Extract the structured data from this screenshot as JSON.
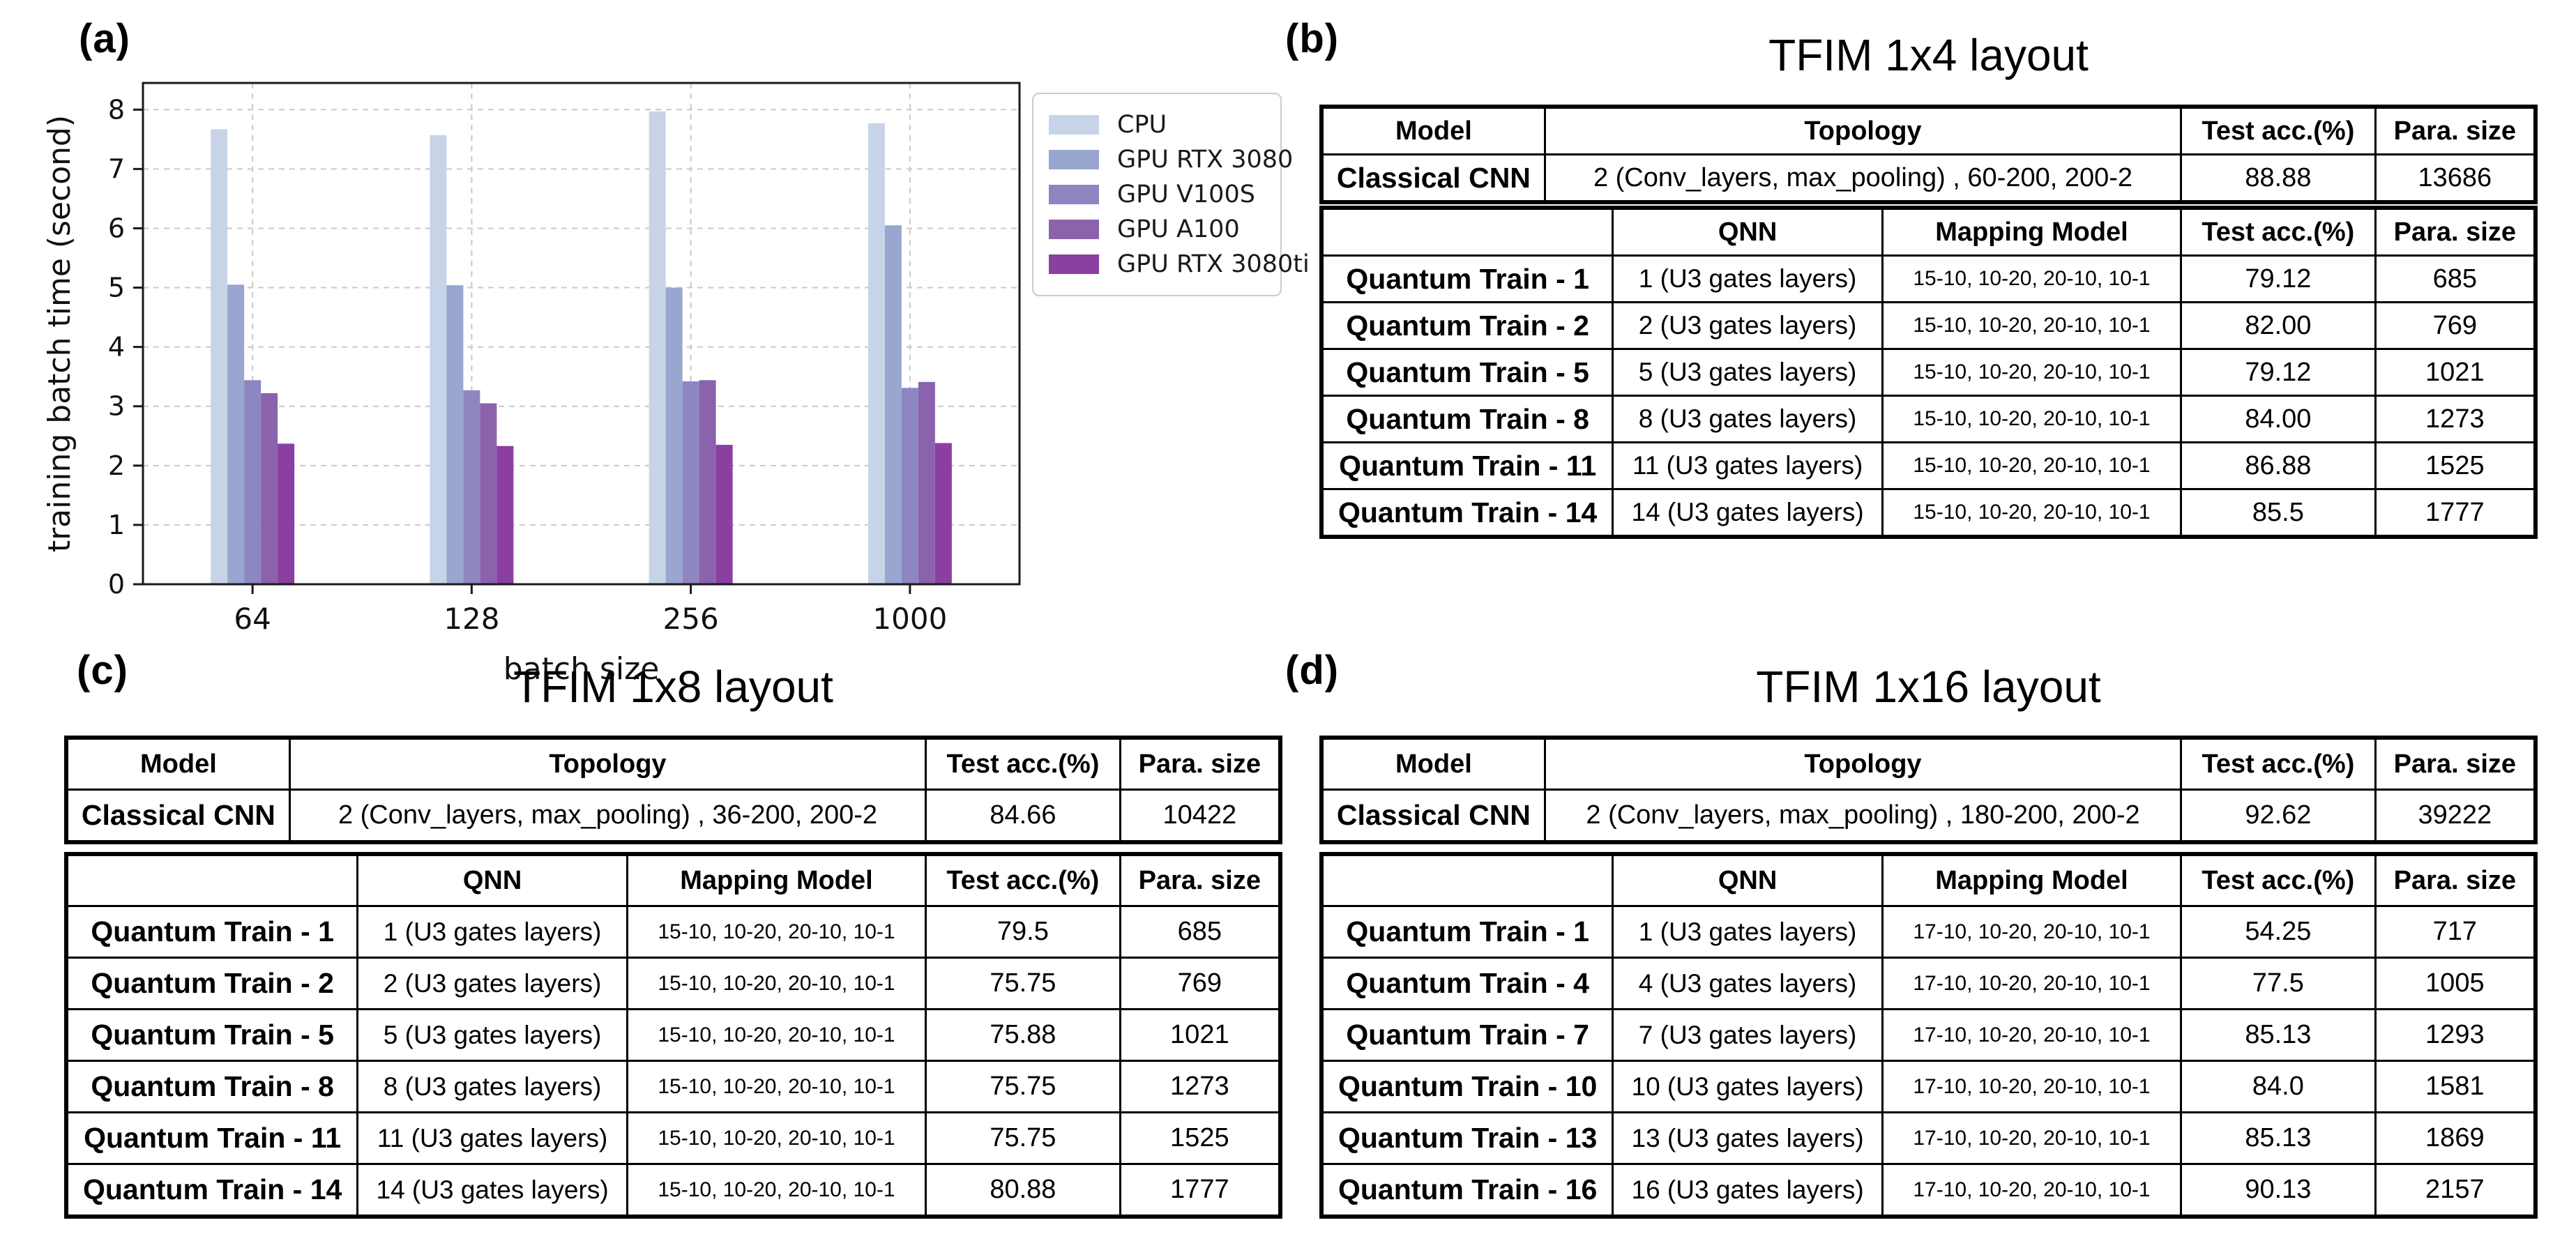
{
  "panel_labels": {
    "a": "(a)",
    "b": "(b)",
    "c": "(c)",
    "d": "(d)"
  },
  "chart_data": {
    "type": "bar",
    "title": "",
    "xlabel": "batch size",
    "ylabel": "training batch time (second)",
    "categories": [
      "64",
      "128",
      "256",
      "1000"
    ],
    "series": [
      {
        "name": "CPU",
        "color": "#c7d4e7",
        "values": [
          7.67,
          7.57,
          7.97,
          7.77
        ]
      },
      {
        "name": "GPU RTX 3080",
        "color": "#99a6cf",
        "values": [
          5.05,
          5.04,
          5.0,
          6.05
        ]
      },
      {
        "name": "GPU V100S",
        "color": "#8d86c0",
        "values": [
          3.44,
          3.27,
          3.42,
          3.31
        ]
      },
      {
        "name": "GPU A100",
        "color": "#8a63ac",
        "values": [
          3.22,
          3.05,
          3.44,
          3.41
        ]
      },
      {
        "name": "GPU RTX 3080ti",
        "color": "#8a3fa1",
        "values": [
          2.37,
          2.33,
          2.35,
          2.38
        ]
      }
    ],
    "ylim": [
      0,
      8.45
    ],
    "yticks": [
      0,
      1,
      2,
      3,
      4,
      5,
      6,
      7,
      8
    ],
    "grid": true,
    "legend_position": "right-outside",
    "axis_color": "#1a1a1a",
    "grid_color": "#c9c9c9"
  },
  "tables": {
    "b": {
      "title": "TFIM 1x4 layout",
      "classical": {
        "headers": [
          "Model",
          "Topology",
          "Test acc.(%)",
          "Para. size"
        ],
        "rows": [
          [
            "Classical CNN",
            "2 (Conv_layers, max_pooling) , 60-200, 200-2",
            "88.88",
            "13686"
          ]
        ]
      },
      "quantum": {
        "headers": [
          "",
          "QNN",
          "Mapping Model",
          "Test acc.(%)",
          "Para. size"
        ],
        "rows": [
          [
            "Quantum Train - 1",
            "1 (U3 gates layers)",
            "15-10, 10-20, 20-10, 10-1",
            "79.12",
            "685"
          ],
          [
            "Quantum Train - 2",
            "2 (U3 gates layers)",
            "15-10, 10-20, 20-10, 10-1",
            "82.00",
            "769"
          ],
          [
            "Quantum Train - 5",
            "5 (U3 gates layers)",
            "15-10, 10-20, 20-10, 10-1",
            "79.12",
            "1021"
          ],
          [
            "Quantum Train - 8",
            "8 (U3 gates layers)",
            "15-10, 10-20, 20-10, 10-1",
            "84.00",
            "1273"
          ],
          [
            "Quantum Train - 11",
            "11 (U3 gates layers)",
            "15-10, 10-20, 20-10, 10-1",
            "86.88",
            "1525"
          ],
          [
            "Quantum Train - 14",
            "14 (U3 gates layers)",
            "15-10, 10-20, 20-10, 10-1",
            "85.5",
            "1777"
          ]
        ]
      }
    },
    "c": {
      "title": "TFIM 1x8 layout",
      "classical": {
        "headers": [
          "Model",
          "Topology",
          "Test acc.(%)",
          "Para. size"
        ],
        "rows": [
          [
            "Classical CNN",
            "2 (Conv_layers, max_pooling) , 36-200, 200-2",
            "84.66",
            "10422"
          ]
        ]
      },
      "quantum": {
        "headers": [
          "",
          "QNN",
          "Mapping Model",
          "Test acc.(%)",
          "Para. size"
        ],
        "rows": [
          [
            "Quantum Train - 1",
            "1 (U3 gates layers)",
            "15-10, 10-20, 20-10, 10-1",
            "79.5",
            "685"
          ],
          [
            "Quantum Train - 2",
            "2 (U3 gates layers)",
            "15-10, 10-20, 20-10, 10-1",
            "75.75",
            "769"
          ],
          [
            "Quantum Train - 5",
            "5 (U3 gates layers)",
            "15-10, 10-20, 20-10, 10-1",
            "75.88",
            "1021"
          ],
          [
            "Quantum Train - 8",
            "8 (U3 gates layers)",
            "15-10, 10-20, 20-10, 10-1",
            "75.75",
            "1273"
          ],
          [
            "Quantum Train - 11",
            "11 (U3 gates layers)",
            "15-10, 10-20, 20-10, 10-1",
            "75.75",
            "1525"
          ],
          [
            "Quantum Train - 14",
            "14 (U3 gates layers)",
            "15-10, 10-20, 20-10, 10-1",
            "80.88",
            "1777"
          ]
        ]
      }
    },
    "d": {
      "title": "TFIM 1x16 layout",
      "classical": {
        "headers": [
          "Model",
          "Topology",
          "Test acc.(%)",
          "Para. size"
        ],
        "rows": [
          [
            "Classical CNN",
            "2 (Conv_layers, max_pooling) , 180-200, 200-2",
            "92.62",
            "39222"
          ]
        ]
      },
      "quantum": {
        "headers": [
          "",
          "QNN",
          "Mapping Model",
          "Test acc.(%)",
          "Para. size"
        ],
        "rows": [
          [
            "Quantum Train - 1",
            "1 (U3 gates layers)",
            "17-10, 10-20, 20-10, 10-1",
            "54.25",
            "717"
          ],
          [
            "Quantum Train - 4",
            "4 (U3 gates layers)",
            "17-10, 10-20, 20-10, 10-1",
            "77.5",
            "1005"
          ],
          [
            "Quantum Train - 7",
            "7 (U3 gates layers)",
            "17-10, 10-20, 20-10, 10-1",
            "85.13",
            "1293"
          ],
          [
            "Quantum Train - 10",
            "10 (U3 gates layers)",
            "17-10, 10-20, 20-10, 10-1",
            "84.0",
            "1581"
          ],
          [
            "Quantum Train - 13",
            "13 (U3 gates layers)",
            "17-10, 10-20, 20-10, 10-1",
            "85.13",
            "1869"
          ],
          [
            "Quantum Train - 16",
            "16 (U3 gates layers)",
            "17-10, 10-20, 20-10, 10-1",
            "90.13",
            "2157"
          ]
        ]
      }
    }
  }
}
